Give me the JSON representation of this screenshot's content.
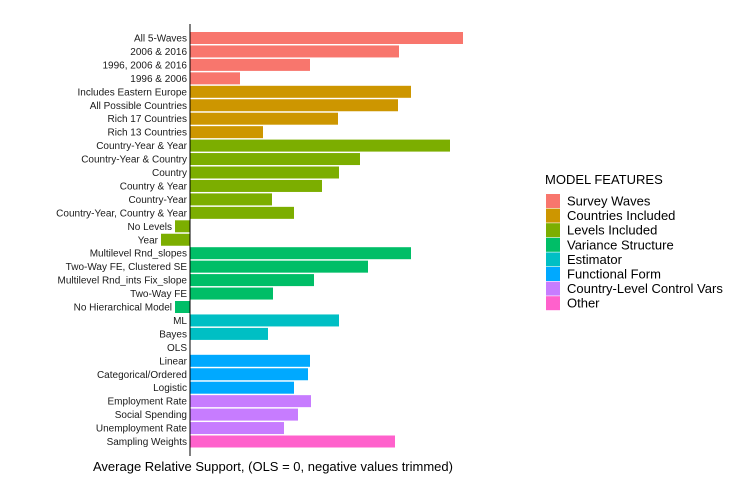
{
  "chart_data": {
    "type": "bar",
    "orientation": "horizontal",
    "xlabel": "Average Relative Support, (OLS = 0, negative values trimmed)",
    "ylabel": "",
    "grid": false,
    "legend_placement": "right",
    "legend": {
      "title": "MODEL FEATURES",
      "entries": [
        {
          "name": "Survey Waves",
          "color": "#F8766D"
        },
        {
          "name": "Countries Included",
          "color": "#CD9600"
        },
        {
          "name": "Levels Included",
          "color": "#7CAE00"
        },
        {
          "name": "Variance Structure",
          "color": "#00BE67"
        },
        {
          "name": "Estimator",
          "color": "#00BFC4"
        },
        {
          "name": "Functional Form",
          "color": "#00A9FF"
        },
        {
          "name": "Country-Level Control Vars",
          "color": "#C77CFF"
        },
        {
          "name": "Other",
          "color": "#FF61CC"
        }
      ]
    },
    "bars": [
      {
        "label": "All 5-Waves",
        "value": 0.273,
        "group": "Survey Waves"
      },
      {
        "label": "2006 & 2016",
        "value": 0.209,
        "group": "Survey Waves"
      },
      {
        "label": "1996, 2006 & 2016",
        "value": 0.12,
        "group": "Survey Waves"
      },
      {
        "label": "1996 & 2006",
        "value": 0.05,
        "group": "Survey Waves"
      },
      {
        "label": "Includes Eastern Europe",
        "value": 0.221,
        "group": "Countries Included"
      },
      {
        "label": "All Possible Countries",
        "value": 0.208,
        "group": "Countries Included"
      },
      {
        "label": "Rich 17 Countries",
        "value": 0.148,
        "group": "Countries Included"
      },
      {
        "label": "Rich 13 Countries",
        "value": 0.073,
        "group": "Countries Included"
      },
      {
        "label": "Country-Year & Year",
        "value": 0.26,
        "group": "Levels Included"
      },
      {
        "label": "Country-Year & Country",
        "value": 0.17,
        "group": "Levels Included"
      },
      {
        "label": "Country",
        "value": 0.149,
        "group": "Levels Included"
      },
      {
        "label": "Country & Year",
        "value": 0.132,
        "group": "Levels Included"
      },
      {
        "label": "Country-Year",
        "value": 0.082,
        "group": "Levels Included"
      },
      {
        "label": "Country-Year, Country & Year",
        "value": 0.104,
        "group": "Levels Included"
      },
      {
        "label": "No Levels",
        "value": -0.015,
        "group": "Levels Included"
      },
      {
        "label": "Year",
        "value": -0.029,
        "group": "Levels Included"
      },
      {
        "label": "Multilevel Rnd_slopes",
        "value": 0.221,
        "group": "Variance Structure"
      },
      {
        "label": "Two-Way FE, Clustered SE",
        "value": 0.178,
        "group": "Variance Structure"
      },
      {
        "label": "Multilevel Rnd_ints Fix_slope",
        "value": 0.124,
        "group": "Variance Structure"
      },
      {
        "label": "Two-Way FE",
        "value": 0.083,
        "group": "Variance Structure"
      },
      {
        "label": "No Hierarchical Model",
        "value": -0.015,
        "group": "Variance Structure"
      },
      {
        "label": "ML",
        "value": 0.149,
        "group": "Estimator"
      },
      {
        "label": "Bayes",
        "value": 0.078,
        "group": "Estimator"
      },
      {
        "label": "OLS",
        "value": 0,
        "group": "Estimator"
      },
      {
        "label": "Linear",
        "value": 0.12,
        "group": "Functional Form"
      },
      {
        "label": "Categorical/Ordered",
        "value": 0.118,
        "group": "Functional Form"
      },
      {
        "label": "Logistic",
        "value": 0.104,
        "group": "Functional Form"
      },
      {
        "label": "Employment Rate",
        "value": 0.121,
        "group": "Country-Level Control Vars"
      },
      {
        "label": "Social Spending",
        "value": 0.108,
        "group": "Country-Level Control Vars"
      },
      {
        "label": "Unemployment Rate",
        "value": 0.094,
        "group": "Country-Level Control Vars"
      },
      {
        "label": "Sampling Weights",
        "value": 0.205,
        "group": "Other"
      }
    ]
  }
}
